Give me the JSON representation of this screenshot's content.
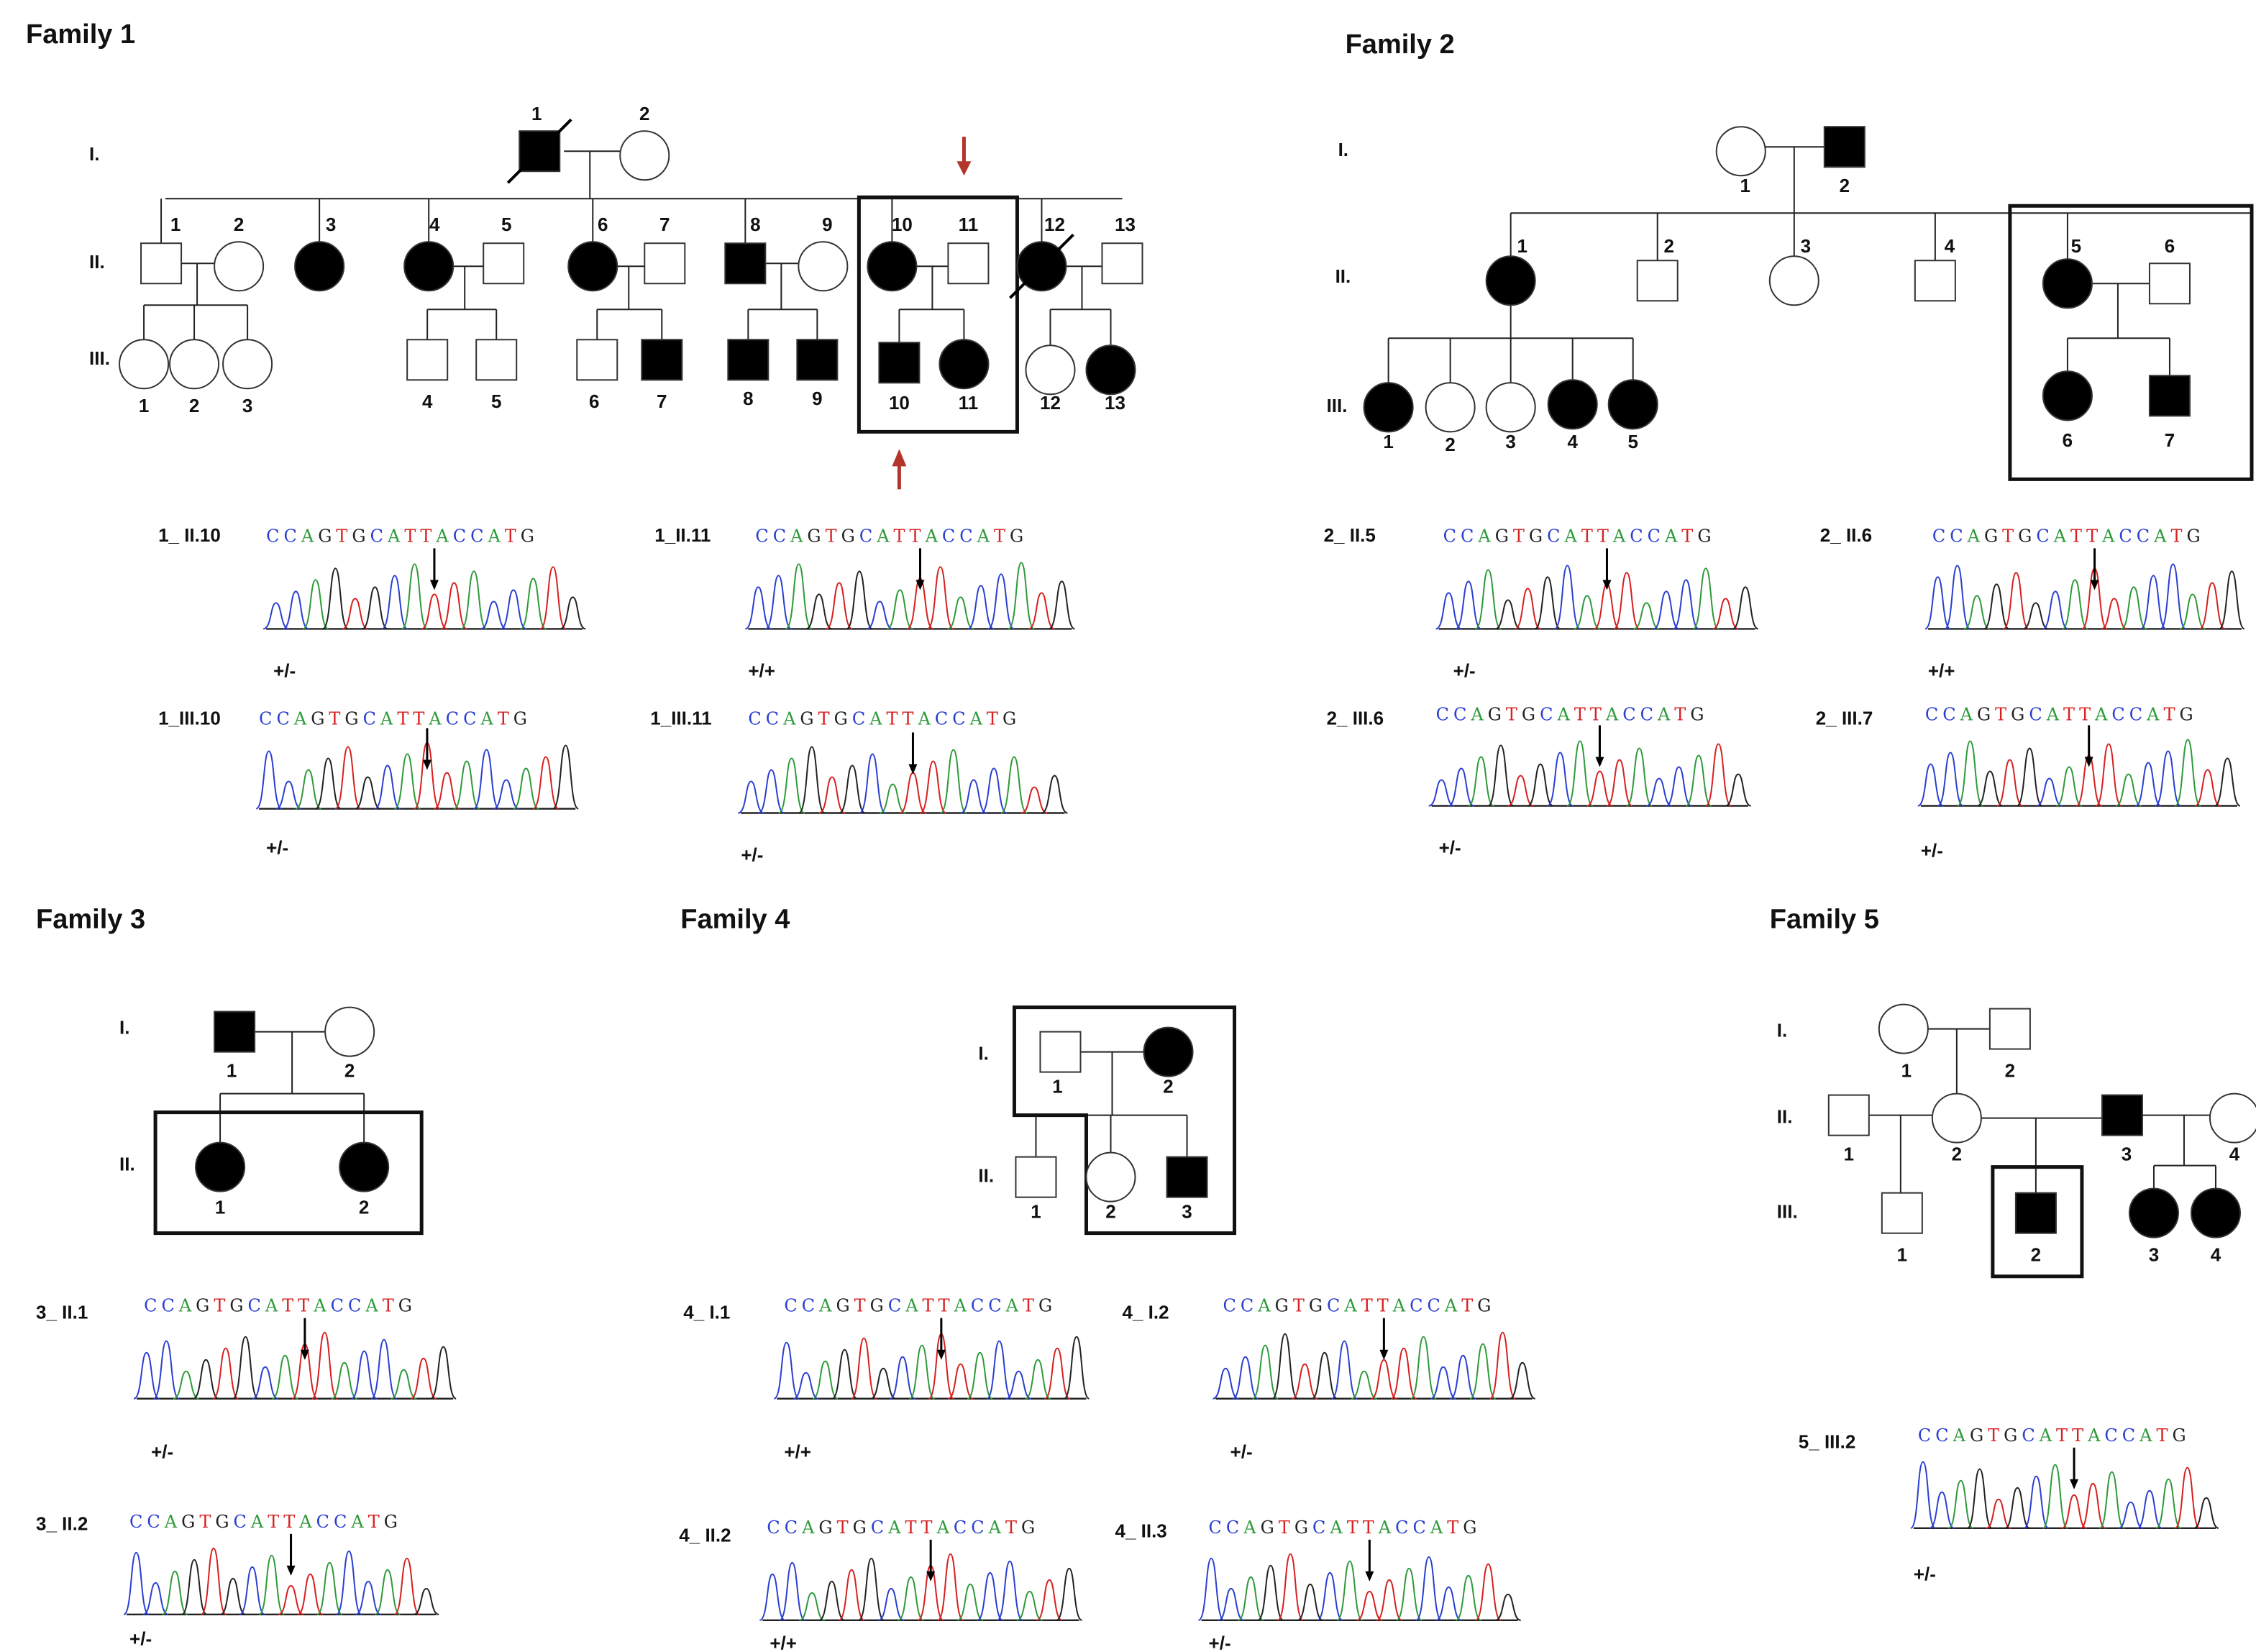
{
  "families": [
    {
      "title": "Family 1",
      "generations": [
        "I.",
        "II.",
        "III."
      ],
      "members": [
        [
          "1",
          "2"
        ],
        [
          "1",
          "2",
          "3",
          "4",
          "5",
          "6",
          "7",
          "8",
          "9",
          "10",
          "11",
          "12",
          "13"
        ],
        [
          "1",
          "2",
          "3",
          "4",
          "5",
          "6",
          "7",
          "8",
          "9",
          "10",
          "11",
          "12",
          "13"
        ]
      ],
      "samples": [
        {
          "label": "1_ II.10",
          "sequence": "CCAGTGCATTACCATG",
          "genotype": "+/-"
        },
        {
          "label": "1_II.11",
          "sequence": "CCAGTGCATTACCATG",
          "genotype": "+/+"
        },
        {
          "label": "1_III.10",
          "sequence": "CCAGTGCATTACCATG",
          "genotype": "+/-"
        },
        {
          "label": "1_III.11",
          "sequence": "CCAGTGCATTACCATG",
          "genotype": "+/-"
        }
      ]
    },
    {
      "title": "Family 2",
      "generations": [
        "I.",
        "II.",
        "III."
      ],
      "members": [
        [
          "1",
          "2"
        ],
        [
          "1",
          "2",
          "3",
          "4",
          "5",
          "6"
        ],
        [
          "1",
          "2",
          "3",
          "4",
          "5",
          "6",
          "7"
        ]
      ],
      "samples": [
        {
          "label": "2_ II.5",
          "sequence": "CCAGTGCATTACCATG",
          "genotype": "+/-"
        },
        {
          "label": "2_ II.6",
          "sequence": "CCAGTGCATTACCATG",
          "genotype": "+/+"
        },
        {
          "label": "2_ III.6",
          "sequence": "CCAGTGCATTACCATG",
          "genotype": "+/-"
        },
        {
          "label": "2_ III.7",
          "sequence": "CCAGTGCATTACCATG",
          "genotype": "+/-"
        }
      ]
    },
    {
      "title": "Family 3",
      "generations": [
        "I.",
        "II."
      ],
      "members": [
        [
          "1",
          "2"
        ],
        [
          "1",
          "2"
        ]
      ],
      "samples": [
        {
          "label": "3_ II.1",
          "sequence": "CCAGTGCATTACCATG",
          "genotype": "+/-"
        },
        {
          "label": "3_ II.2",
          "sequence": "CCAGTGCATTACCATG",
          "genotype": "+/-"
        }
      ]
    },
    {
      "title": "Family 4",
      "generations": [
        "I.",
        "II."
      ],
      "members": [
        [
          "1",
          "2"
        ],
        [
          "1",
          "2",
          "3"
        ]
      ],
      "samples": [
        {
          "label": "4_ I.1",
          "sequence": "CCAGTGCATTACCATG",
          "genotype": "+/+"
        },
        {
          "label": "4_ I.2",
          "sequence": "CCAGTGCATTACCATG",
          "genotype": "+/-"
        },
        {
          "label": "4_ II.2",
          "sequence": "CCAGTGCATTACCATG",
          "genotype": "+/+"
        },
        {
          "label": "4_ II.3",
          "sequence": "CCAGTGCATTACCATG",
          "genotype": "+/-"
        }
      ]
    },
    {
      "title": "Family 5",
      "generations": [
        "I.",
        "II.",
        "III."
      ],
      "members": [
        [
          "1",
          "2"
        ],
        [
          "1",
          "2",
          "3",
          "4"
        ],
        [
          "1",
          "2",
          "3",
          "4"
        ]
      ],
      "samples": [
        {
          "label": "5_ III.2",
          "sequence": "CCAGTGCATTACCATG",
          "genotype": "+/-"
        }
      ]
    }
  ]
}
